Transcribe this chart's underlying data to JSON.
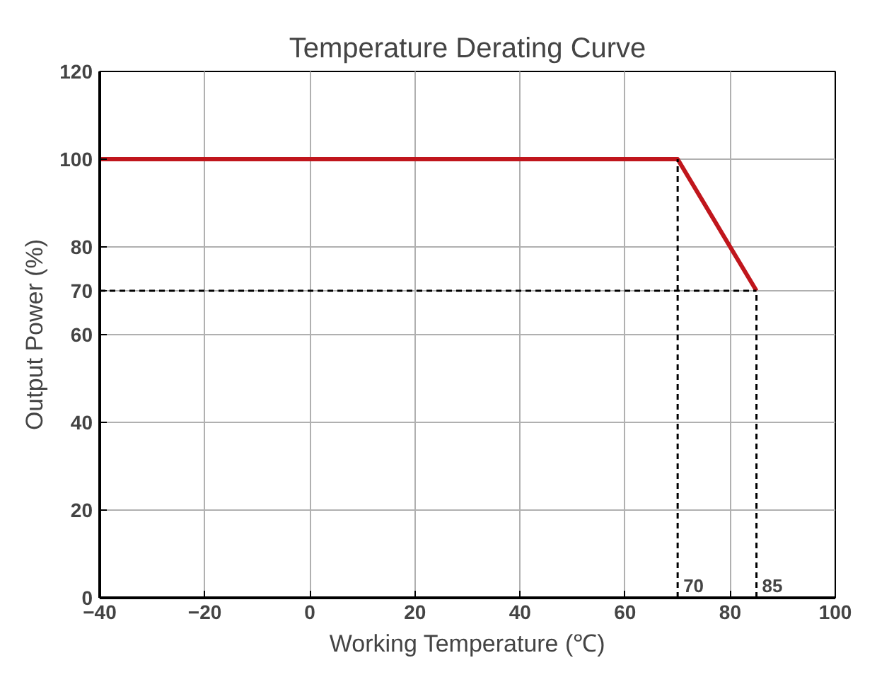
{
  "chart_data": {
    "type": "line",
    "title": "Temperature Derating Curve",
    "xlabel": "Working Temperature (℃)",
    "ylabel": "Output Power (%)",
    "x": [
      -40,
      70,
      85
    ],
    "series": [
      {
        "color": "#c0161c",
        "values": [
          100,
          100,
          70
        ]
      }
    ],
    "xlim": [
      -40,
      100
    ],
    "xticks": [
      -40,
      -20,
      0,
      20,
      40,
      60,
      80,
      100
    ],
    "ylim": [
      0,
      120
    ],
    "yticks": [
      0,
      20,
      40,
      60,
      70,
      80,
      100,
      120
    ],
    "grid": true,
    "line_style": "solid",
    "ref_lines": [
      {
        "axis": "x",
        "value": 70,
        "label": "70",
        "line_style": "dashed",
        "color": "#000000"
      },
      {
        "axis": "x",
        "value": 85,
        "label": "85",
        "line_style": "dashed",
        "color": "#000000"
      },
      {
        "axis": "y",
        "value": 70,
        "line_style": "dashed",
        "color": "#000000"
      }
    ]
  }
}
